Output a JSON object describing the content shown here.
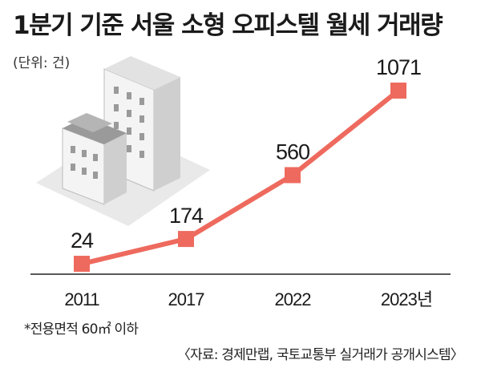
{
  "title": "1분기 기준 서울 소형 오피스텔 월세 거래량",
  "unit_label": "(단위: 건)",
  "footnote": "*전용면적 60㎡ 이하",
  "source": "〈자료: 경제만랩, 국토교통부 실거래가 공개시스템〉",
  "colors": {
    "line": "#ee6a5e",
    "marker": "#ee6a5e",
    "baseline": "#222222",
    "building_light": "#e9e9e9",
    "building_mid": "#cfcfcf",
    "building_dark": "#9a9a9a"
  },
  "chart_data": {
    "type": "line",
    "categories": [
      "2011",
      "2017",
      "2022",
      "2023년"
    ],
    "values": [
      24,
      174,
      560,
      1071
    ],
    "value_labels": [
      "24",
      "174",
      "560",
      "1071"
    ],
    "title": "1분기 기준 서울 소형 오피스텔 월세 거래량",
    "xlabel": "",
    "ylabel": "",
    "ylim": [
      0,
      1100
    ],
    "grid": false,
    "legend": "none"
  }
}
